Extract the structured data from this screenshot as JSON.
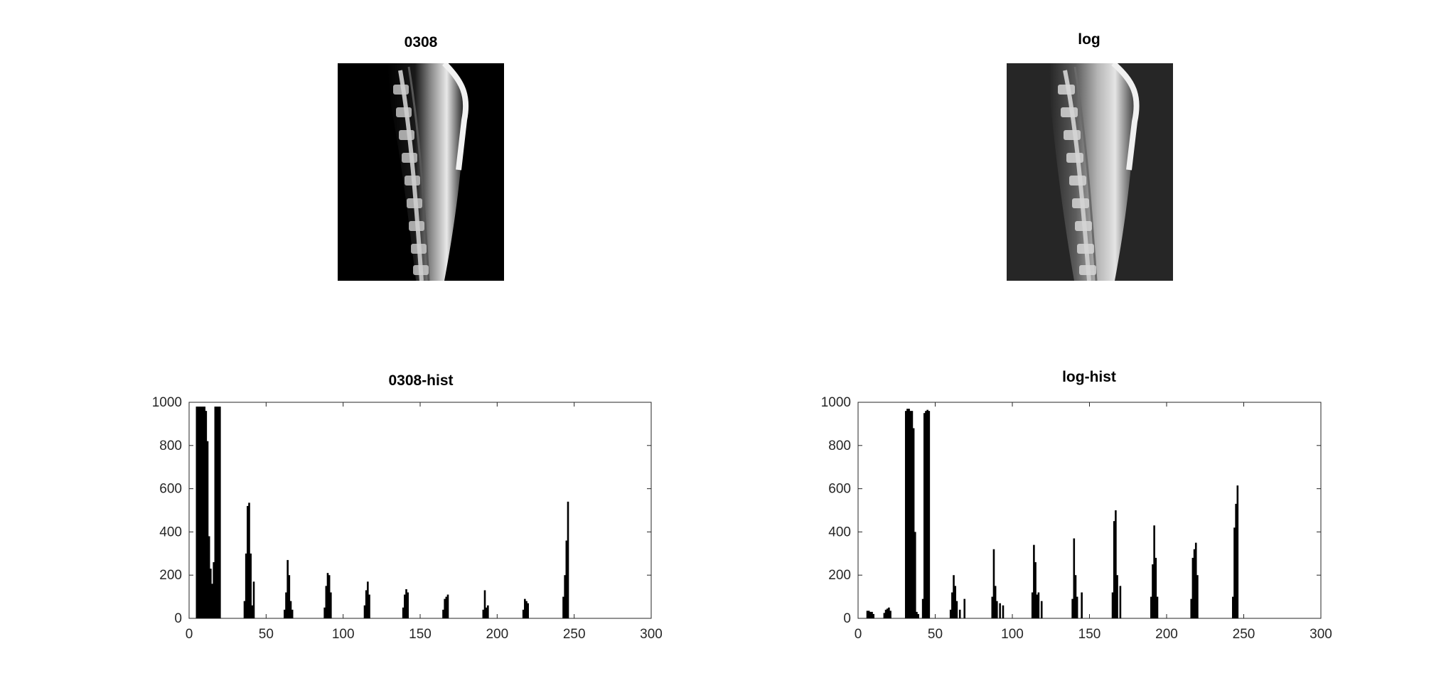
{
  "figure": {
    "titles": {
      "orig_image": "0308",
      "log_image": "log",
      "orig_hist": "0308-hist",
      "log_hist": "log-hist"
    }
  },
  "chart_data": [
    {
      "type": "image",
      "title": "0308",
      "description_colors": {
        "background": "#000000",
        "tissue": "#d8d8d8"
      }
    },
    {
      "type": "image",
      "title": "log",
      "description_colors": {
        "background": "#2a2a2a",
        "tissue": "#cfcfcf"
      }
    },
    {
      "type": "bar",
      "title": "0308-hist",
      "xlim": [
        0,
        300
      ],
      "ylim": [
        0,
        1000
      ],
      "xticks": [
        0,
        50,
        100,
        150,
        200,
        250,
        300
      ],
      "yticks": [
        0,
        200,
        400,
        600,
        800,
        1000
      ],
      "bar_color": "#000000",
      "bins": [
        {
          "x": 5,
          "y": 980
        },
        {
          "x": 6,
          "y": 980
        },
        {
          "x": 7,
          "y": 980
        },
        {
          "x": 8,
          "y": 980
        },
        {
          "x": 9,
          "y": 980
        },
        {
          "x": 10,
          "y": 980
        },
        {
          "x": 11,
          "y": 960
        },
        {
          "x": 12,
          "y": 820
        },
        {
          "x": 13,
          "y": 380
        },
        {
          "x": 14,
          "y": 230
        },
        {
          "x": 15,
          "y": 160
        },
        {
          "x": 16,
          "y": 260
        },
        {
          "x": 17,
          "y": 980
        },
        {
          "x": 18,
          "y": 980
        },
        {
          "x": 19,
          "y": 980
        },
        {
          "x": 20,
          "y": 980
        },
        {
          "x": 36,
          "y": 80
        },
        {
          "x": 37,
          "y": 300
        },
        {
          "x": 38,
          "y": 520
        },
        {
          "x": 39,
          "y": 535
        },
        {
          "x": 40,
          "y": 300
        },
        {
          "x": 41,
          "y": 60
        },
        {
          "x": 42,
          "y": 170
        },
        {
          "x": 62,
          "y": 40
        },
        {
          "x": 63,
          "y": 120
        },
        {
          "x": 64,
          "y": 270
        },
        {
          "x": 65,
          "y": 200
        },
        {
          "x": 66,
          "y": 80
        },
        {
          "x": 67,
          "y": 40
        },
        {
          "x": 88,
          "y": 50
        },
        {
          "x": 89,
          "y": 150
        },
        {
          "x": 90,
          "y": 210
        },
        {
          "x": 91,
          "y": 200
        },
        {
          "x": 92,
          "y": 120
        },
        {
          "x": 114,
          "y": 60
        },
        {
          "x": 115,
          "y": 130
        },
        {
          "x": 116,
          "y": 170
        },
        {
          "x": 117,
          "y": 110
        },
        {
          "x": 139,
          "y": 50
        },
        {
          "x": 140,
          "y": 110
        },
        {
          "x": 141,
          "y": 135
        },
        {
          "x": 142,
          "y": 120
        },
        {
          "x": 165,
          "y": 40
        },
        {
          "x": 166,
          "y": 90
        },
        {
          "x": 167,
          "y": 100
        },
        {
          "x": 168,
          "y": 110
        },
        {
          "x": 191,
          "y": 40
        },
        {
          "x": 192,
          "y": 130
        },
        {
          "x": 193,
          "y": 50
        },
        {
          "x": 194,
          "y": 60
        },
        {
          "x": 217,
          "y": 40
        },
        {
          "x": 218,
          "y": 90
        },
        {
          "x": 219,
          "y": 80
        },
        {
          "x": 220,
          "y": 70
        },
        {
          "x": 243,
          "y": 100
        },
        {
          "x": 244,
          "y": 200
        },
        {
          "x": 245,
          "y": 360
        },
        {
          "x": 246,
          "y": 540
        }
      ]
    },
    {
      "type": "bar",
      "title": "log-hist",
      "xlim": [
        0,
        300
      ],
      "ylim": [
        0,
        1000
      ],
      "xticks": [
        0,
        50,
        100,
        150,
        200,
        250,
        300
      ],
      "yticks": [
        0,
        200,
        400,
        600,
        800,
        1000
      ],
      "bar_color": "#000000",
      "bins": [
        {
          "x": 6,
          "y": 35
        },
        {
          "x": 7,
          "y": 35
        },
        {
          "x": 8,
          "y": 30
        },
        {
          "x": 9,
          "y": 30
        },
        {
          "x": 10,
          "y": 20
        },
        {
          "x": 17,
          "y": 25
        },
        {
          "x": 18,
          "y": 40
        },
        {
          "x": 19,
          "y": 45
        },
        {
          "x": 20,
          "y": 50
        },
        {
          "x": 21,
          "y": 35
        },
        {
          "x": 31,
          "y": 960
        },
        {
          "x": 32,
          "y": 970
        },
        {
          "x": 33,
          "y": 970
        },
        {
          "x": 34,
          "y": 960
        },
        {
          "x": 35,
          "y": 960
        },
        {
          "x": 36,
          "y": 880
        },
        {
          "x": 37,
          "y": 400
        },
        {
          "x": 38,
          "y": 30
        },
        {
          "x": 39,
          "y": 20
        },
        {
          "x": 42,
          "y": 90
        },
        {
          "x": 43,
          "y": 950
        },
        {
          "x": 44,
          "y": 960
        },
        {
          "x": 45,
          "y": 965
        },
        {
          "x": 46,
          "y": 960
        },
        {
          "x": 60,
          "y": 40
        },
        {
          "x": 61,
          "y": 120
        },
        {
          "x": 62,
          "y": 200
        },
        {
          "x": 63,
          "y": 150
        },
        {
          "x": 64,
          "y": 80
        },
        {
          "x": 66,
          "y": 40
        },
        {
          "x": 69,
          "y": 90
        },
        {
          "x": 87,
          "y": 100
        },
        {
          "x": 88,
          "y": 320
        },
        {
          "x": 89,
          "y": 150
        },
        {
          "x": 90,
          "y": 80
        },
        {
          "x": 92,
          "y": 70
        },
        {
          "x": 94,
          "y": 60
        },
        {
          "x": 113,
          "y": 120
        },
        {
          "x": 114,
          "y": 340
        },
        {
          "x": 115,
          "y": 260
        },
        {
          "x": 116,
          "y": 110
        },
        {
          "x": 117,
          "y": 120
        },
        {
          "x": 119,
          "y": 80
        },
        {
          "x": 139,
          "y": 90
        },
        {
          "x": 140,
          "y": 370
        },
        {
          "x": 141,
          "y": 200
        },
        {
          "x": 142,
          "y": 100
        },
        {
          "x": 145,
          "y": 120
        },
        {
          "x": 165,
          "y": 120
        },
        {
          "x": 166,
          "y": 450
        },
        {
          "x": 167,
          "y": 500
        },
        {
          "x": 168,
          "y": 200
        },
        {
          "x": 170,
          "y": 150
        },
        {
          "x": 190,
          "y": 100
        },
        {
          "x": 191,
          "y": 250
        },
        {
          "x": 192,
          "y": 430
        },
        {
          "x": 193,
          "y": 280
        },
        {
          "x": 194,
          "y": 100
        },
        {
          "x": 216,
          "y": 90
        },
        {
          "x": 217,
          "y": 280
        },
        {
          "x": 218,
          "y": 320
        },
        {
          "x": 219,
          "y": 350
        },
        {
          "x": 220,
          "y": 200
        },
        {
          "x": 243,
          "y": 100
        },
        {
          "x": 244,
          "y": 420
        },
        {
          "x": 245,
          "y": 530
        },
        {
          "x": 246,
          "y": 615
        }
      ]
    }
  ]
}
